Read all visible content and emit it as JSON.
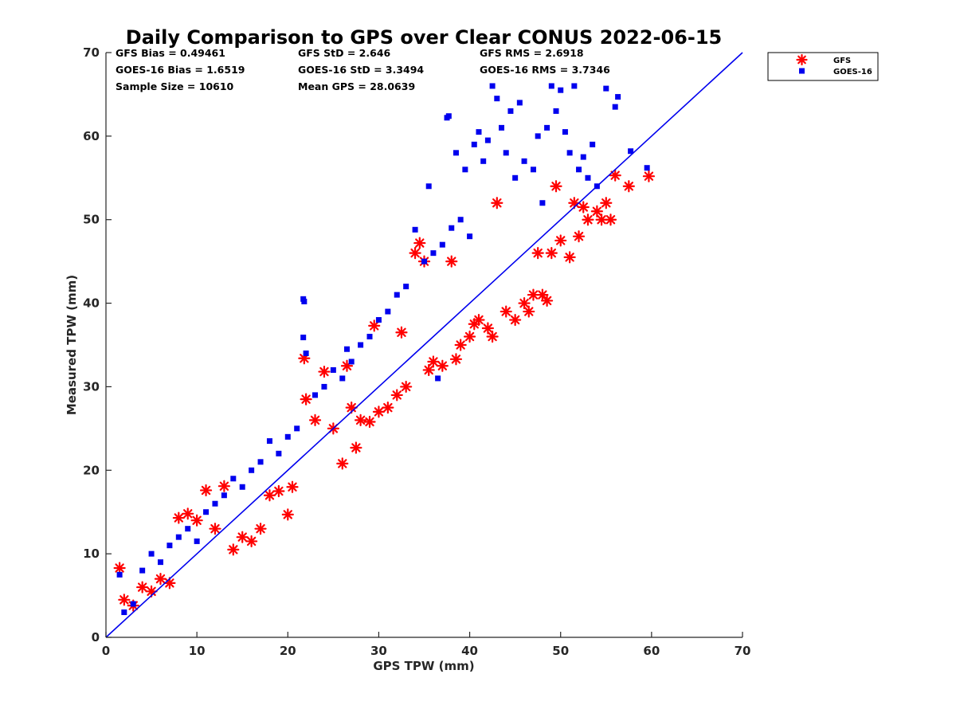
{
  "chart_data": {
    "type": "scatter",
    "title": "Daily Comparison to GPS over Clear CONUS 2022-06-15",
    "xlabel": "GPS TPW (mm)",
    "ylabel": "Measured TPW (mm)",
    "xlim": [
      0,
      70
    ],
    "ylim": [
      0,
      70
    ],
    "xticks": [
      "0",
      "10",
      "20",
      "30",
      "40",
      "50",
      "60",
      "70"
    ],
    "yticks": [
      "0",
      "10",
      "20",
      "30",
      "40",
      "50",
      "60",
      "70"
    ],
    "legend_position": "outside top-right",
    "stats": {
      "gfs_bias": "GFS Bias = 0.49461",
      "gfs_std": "GFS StD = 2.646",
      "gfs_rms": "GFS RMS = 2.6918",
      "goes_bias": "GOES-16 Bias = 1.6519",
      "goes_std": "GOES-16 StD = 3.3494",
      "goes_rms": "GOES-16 RMS = 3.7346",
      "sample_size": "Sample Size = 10610",
      "mean_gps": "Mean GPS = 28.0639"
    },
    "reference_line": {
      "name": "1:1",
      "x": [
        0,
        70
      ],
      "y": [
        0,
        70
      ],
      "color": "#0000ee"
    },
    "series": [
      {
        "name": "GFS",
        "marker": "asterisk",
        "color": "#ff0000",
        "points": [
          [
            1.5,
            8.3
          ],
          [
            2.0,
            4.5
          ],
          [
            3.0,
            3.8
          ],
          [
            4.0,
            6.0
          ],
          [
            5.0,
            5.5
          ],
          [
            6.0,
            7.0
          ],
          [
            7.0,
            6.5
          ],
          [
            8.0,
            14.3
          ],
          [
            9.0,
            14.8
          ],
          [
            10.0,
            14.0
          ],
          [
            11.0,
            17.6
          ],
          [
            12.0,
            13.0
          ],
          [
            13.0,
            18.1
          ],
          [
            14.0,
            10.5
          ],
          [
            15.0,
            12.0
          ],
          [
            16.0,
            11.5
          ],
          [
            17.0,
            13.0
          ],
          [
            18.0,
            17.0
          ],
          [
            19.0,
            17.5
          ],
          [
            20.0,
            14.7
          ],
          [
            20.5,
            18.0
          ],
          [
            21.8,
            33.4
          ],
          [
            22.0,
            28.5
          ],
          [
            23.0,
            26.0
          ],
          [
            24.0,
            31.8
          ],
          [
            25.0,
            25.0
          ],
          [
            26.0,
            20.8
          ],
          [
            26.5,
            32.5
          ],
          [
            27.0,
            27.5
          ],
          [
            27.5,
            22.7
          ],
          [
            28.0,
            26.0
          ],
          [
            29.0,
            25.8
          ],
          [
            29.5,
            37.3
          ],
          [
            30.0,
            27.0
          ],
          [
            31.0,
            27.5
          ],
          [
            32.0,
            29.0
          ],
          [
            32.5,
            36.5
          ],
          [
            33.0,
            30.0
          ],
          [
            34.0,
            46.0
          ],
          [
            34.5,
            47.2
          ],
          [
            35.0,
            45.0
          ],
          [
            35.5,
            32.0
          ],
          [
            36.0,
            33.0
          ],
          [
            37.0,
            32.5
          ],
          [
            38.0,
            45.0
          ],
          [
            38.5,
            33.3
          ],
          [
            39.0,
            35.0
          ],
          [
            40.0,
            36.0
          ],
          [
            40.5,
            37.5
          ],
          [
            41.0,
            38.0
          ],
          [
            42.0,
            37.0
          ],
          [
            42.5,
            36.0
          ],
          [
            43.0,
            52.0
          ],
          [
            44.0,
            39.0
          ],
          [
            45.0,
            38.0
          ],
          [
            46.0,
            40.0
          ],
          [
            46.5,
            39.0
          ],
          [
            47.0,
            41.0
          ],
          [
            47.5,
            46.0
          ],
          [
            48.0,
            41.0
          ],
          [
            48.5,
            40.3
          ],
          [
            49.0,
            46.0
          ],
          [
            49.5,
            54.0
          ],
          [
            50.0,
            47.5
          ],
          [
            51.0,
            45.5
          ],
          [
            51.5,
            52.0
          ],
          [
            52.0,
            48.0
          ],
          [
            52.5,
            51.5
          ],
          [
            53.0,
            50.0
          ],
          [
            54.0,
            51.0
          ],
          [
            54.5,
            50.0
          ],
          [
            55.0,
            52.0
          ],
          [
            55.5,
            50.0
          ],
          [
            56.0,
            55.3
          ],
          [
            57.5,
            54.0
          ],
          [
            59.7,
            55.2
          ]
        ]
      },
      {
        "name": "GOES-16",
        "marker": "square",
        "color": "#0000ee",
        "points": [
          [
            1.5,
            7.5
          ],
          [
            2.0,
            3.0
          ],
          [
            3.0,
            4.0
          ],
          [
            4.0,
            8.0
          ],
          [
            5.0,
            10.0
          ],
          [
            6.0,
            9.0
          ],
          [
            7.0,
            11.0
          ],
          [
            8.0,
            12.0
          ],
          [
            9.0,
            13.0
          ],
          [
            10.0,
            11.5
          ],
          [
            11.0,
            15.0
          ],
          [
            12.0,
            16.0
          ],
          [
            13.0,
            17.0
          ],
          [
            14.0,
            19.0
          ],
          [
            15.0,
            18.0
          ],
          [
            16.0,
            20.0
          ],
          [
            17.0,
            21.0
          ],
          [
            18.0,
            23.5
          ],
          [
            19.0,
            22.0
          ],
          [
            20.0,
            24.0
          ],
          [
            21.0,
            25.0
          ],
          [
            21.7,
            40.5
          ],
          [
            21.8,
            40.2
          ],
          [
            21.7,
            35.9
          ],
          [
            22.0,
            34.0
          ],
          [
            23.0,
            29.0
          ],
          [
            24.0,
            30.0
          ],
          [
            25.0,
            32.0
          ],
          [
            26.0,
            31.0
          ],
          [
            26.5,
            34.5
          ],
          [
            27.0,
            33.0
          ],
          [
            28.0,
            35.0
          ],
          [
            29.0,
            36.0
          ],
          [
            30.0,
            38.0
          ],
          [
            31.0,
            39.0
          ],
          [
            32.0,
            41.0
          ],
          [
            33.0,
            42.0
          ],
          [
            34.0,
            48.8
          ],
          [
            35.0,
            45.0
          ],
          [
            35.5,
            54.0
          ],
          [
            36.0,
            46.0
          ],
          [
            36.5,
            31.0
          ],
          [
            37.0,
            47.0
          ],
          [
            37.5,
            62.2
          ],
          [
            37.7,
            62.4
          ],
          [
            38.0,
            49.0
          ],
          [
            38.5,
            58.0
          ],
          [
            39.0,
            50.0
          ],
          [
            39.5,
            56.0
          ],
          [
            40.0,
            48.0
          ],
          [
            40.5,
            59.0
          ],
          [
            41.0,
            60.5
          ],
          [
            41.5,
            57.0
          ],
          [
            42.0,
            59.5
          ],
          [
            42.5,
            66.0
          ],
          [
            43.0,
            64.5
          ],
          [
            43.5,
            61.0
          ],
          [
            44.0,
            58.0
          ],
          [
            44.5,
            63.0
          ],
          [
            45.0,
            55.0
          ],
          [
            45.5,
            64.0
          ],
          [
            46.0,
            57.0
          ],
          [
            47.0,
            56.0
          ],
          [
            47.5,
            60.0
          ],
          [
            48.0,
            52.0
          ],
          [
            48.5,
            61.0
          ],
          [
            49.0,
            66.0
          ],
          [
            49.5,
            63.0
          ],
          [
            50.0,
            65.5
          ],
          [
            50.5,
            60.5
          ],
          [
            51.0,
            58.0
          ],
          [
            51.5,
            66.0
          ],
          [
            52.0,
            56.0
          ],
          [
            52.5,
            57.5
          ],
          [
            53.0,
            55.0
          ],
          [
            53.5,
            59.0
          ],
          [
            54.0,
            54.0
          ],
          [
            55.0,
            65.7
          ],
          [
            56.0,
            63.5
          ],
          [
            56.3,
            64.7
          ],
          [
            57.7,
            58.2
          ],
          [
            59.5,
            56.2
          ]
        ]
      }
    ]
  }
}
